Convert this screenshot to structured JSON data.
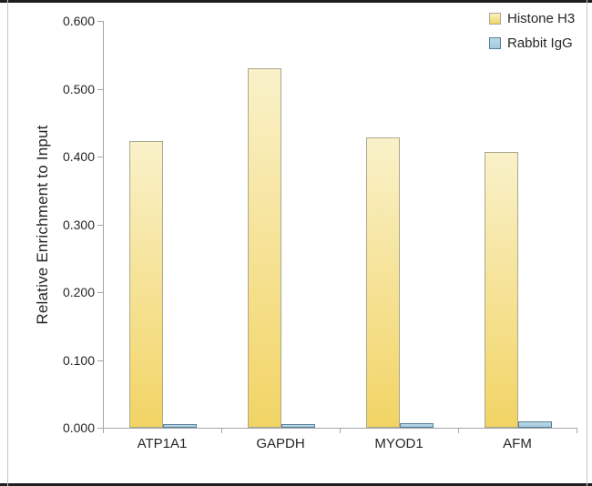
{
  "frame": {
    "background": "#ffffff",
    "top_bottom_rule_color": "#1f1f1f",
    "side_rule_color": "#c6c6c6"
  },
  "axis_style": {
    "line_color": "#a6a6a6",
    "text_color": "#262626"
  },
  "chart_data": {
    "type": "bar",
    "title": "",
    "xlabel": "",
    "ylabel": "Relative Enrichment to Input",
    "ylim": [
      0,
      0.6
    ],
    "grid": false,
    "legend_position": "top-right",
    "categories": [
      "ATP1A1",
      "GAPDH",
      "MYOD1",
      "AFM"
    ],
    "series": [
      {
        "name": "Histone H3",
        "values": [
          0.423,
          0.53,
          0.428,
          0.407
        ],
        "fill_top": "#f9f1c9",
        "fill_bottom": "#f2d465",
        "border_color": "#aaa88e"
      },
      {
        "name": "Rabbit IgG",
        "values": [
          0.006,
          0.006,
          0.007,
          0.01
        ],
        "fill_top": "#bcd8e8",
        "fill_bottom": "#a3cade",
        "border_color": "#577f97"
      }
    ],
    "yticks": [
      {
        "label": "0.000",
        "value": 0.0
      },
      {
        "label": "0.100",
        "value": 0.1
      },
      {
        "label": "0.200",
        "value": 0.2
      },
      {
        "label": "0.300",
        "value": 0.3
      },
      {
        "label": "0.400",
        "value": 0.4
      },
      {
        "label": "0.500",
        "value": 0.5
      },
      {
        "label": "0.600",
        "value": 0.6
      }
    ]
  }
}
